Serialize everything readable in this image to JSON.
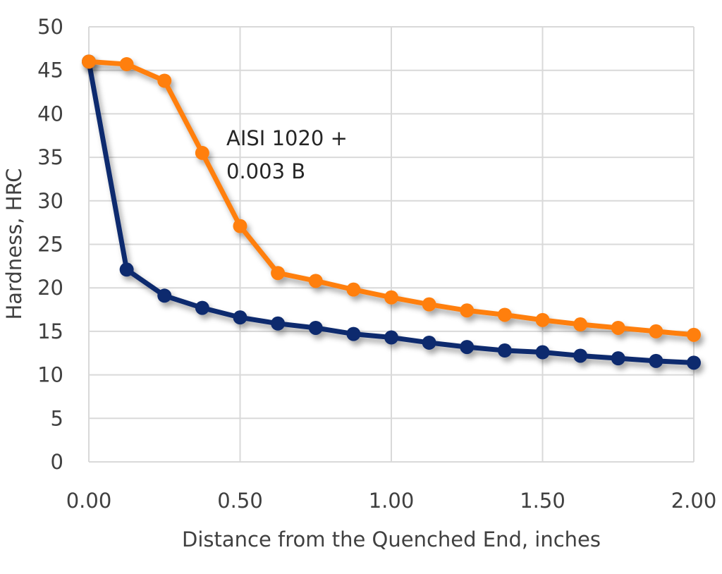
{
  "chart_data": {
    "type": "line",
    "title": "",
    "xlabel": "Distance from the Quenched End, inches",
    "ylabel": "Hardness, HRC",
    "xlim": [
      0,
      2
    ],
    "ylim": [
      0,
      50
    ],
    "grid": true,
    "x_ticks": [
      "0.00",
      "0.50",
      "1.00",
      "1.50",
      "2.00"
    ],
    "y_ticks": [
      "0",
      "5",
      "10",
      "15",
      "20",
      "25",
      "30",
      "35",
      "40",
      "45",
      "50"
    ],
    "x": [
      0,
      0.125,
      0.25,
      0.375,
      0.5,
      0.625,
      0.75,
      0.875,
      1.0,
      1.125,
      1.25,
      1.375,
      1.5,
      1.625,
      1.75,
      1.875,
      2.0
    ],
    "series": [
      {
        "color": "#FF7F0E",
        "values": [
          46.0,
          45.7,
          43.8,
          35.5,
          27.1,
          21.7,
          20.8,
          19.8,
          18.9,
          18.1,
          17.4,
          16.9,
          16.3,
          15.8,
          15.4,
          15.0,
          14.6
        ]
      },
      {
        "color": "#0D2A6E",
        "values": [
          46.0,
          22.1,
          19.1,
          17.7,
          16.6,
          15.9,
          15.4,
          14.7,
          14.3,
          13.7,
          13.2,
          12.8,
          12.6,
          12.2,
          11.9,
          11.6,
          11.4
        ]
      }
    ],
    "annotations": [
      {
        "line1": "AISI 1020 +",
        "line2": "0.003 B"
      }
    ]
  }
}
